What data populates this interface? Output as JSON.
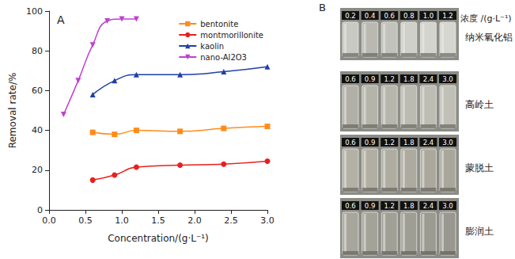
{
  "chart_data": {
    "type": "line",
    "annotation": "A",
    "x_label": "Concentration/(g·L⁻¹)",
    "y_label": "Removal rate/%",
    "xlim": [
      0,
      3
    ],
    "xticks": [
      {
        "value": 0,
        "label": "0.0"
      },
      {
        "value": 0.5,
        "label": "0.5"
      },
      {
        "value": 1,
        "label": "1.0"
      },
      {
        "value": 1.5,
        "label": "1.5"
      },
      {
        "value": 2,
        "label": "2.0"
      },
      {
        "value": 2.5,
        "label": "2.5"
      },
      {
        "value": 3,
        "label": "3.0"
      }
    ],
    "ylim": [
      0,
      100
    ],
    "yticks": [
      0,
      20,
      40,
      60,
      80,
      100
    ],
    "grid": false,
    "legend": "upper right",
    "series": [
      {
        "name": "bentonite",
        "color": "#ff8c1a",
        "marker": "square",
        "line_style": "solid",
        "x": [
          0.6,
          0.9,
          1.2,
          1.8,
          2.4,
          3.0
        ],
        "values": [
          39,
          38,
          40,
          39.5,
          41,
          42
        ]
      },
      {
        "name": "montmorillonite",
        "color": "#e8201e",
        "marker": "circle",
        "line_style": "solid",
        "x": [
          0.6,
          0.9,
          1.2,
          1.8,
          2.4,
          3.0
        ],
        "values": [
          15,
          17.5,
          21.5,
          22.5,
          23,
          24.5
        ]
      },
      {
        "name": "kaolin",
        "color": "#1f3fa8",
        "marker": "triangle",
        "line_style": "solid",
        "x": [
          0.6,
          0.9,
          1.2,
          1.8,
          2.4,
          3.0
        ],
        "values": [
          58,
          65,
          68,
          68,
          69.5,
          72
        ]
      },
      {
        "name": "nano-Al2O3",
        "color": "#c040d0",
        "marker": "triangle-down",
        "line_style": "solid",
        "x": [
          0.2,
          0.4,
          0.6,
          0.8,
          1.0,
          1.2
        ],
        "values": [
          48,
          65,
          83,
          95,
          96,
          96
        ]
      }
    ]
  },
  "panel_b": {
    "label": "B",
    "header": "浓度 /(g·L⁻¹)",
    "rows": [
      {
        "name": "纳米氧化铝",
        "labels": [
          "0.2",
          "0.4",
          "0.6",
          "0.8",
          "1.0",
          "1.2"
        ]
      },
      {
        "name": "高岭土",
        "labels": [
          "0.6",
          "0.9",
          "1.2",
          "1.8",
          "2.4",
          "3.0"
        ]
      },
      {
        "name": "蒙脱土",
        "labels": [
          "0.6",
          "0.9",
          "1.2",
          "1.8",
          "2.4",
          "3.0"
        ]
      },
      {
        "name": "膨润土",
        "labels": [
          "0.6",
          "0.9",
          "1.2",
          "1.8",
          "2.4",
          "3.0"
        ]
      }
    ]
  }
}
